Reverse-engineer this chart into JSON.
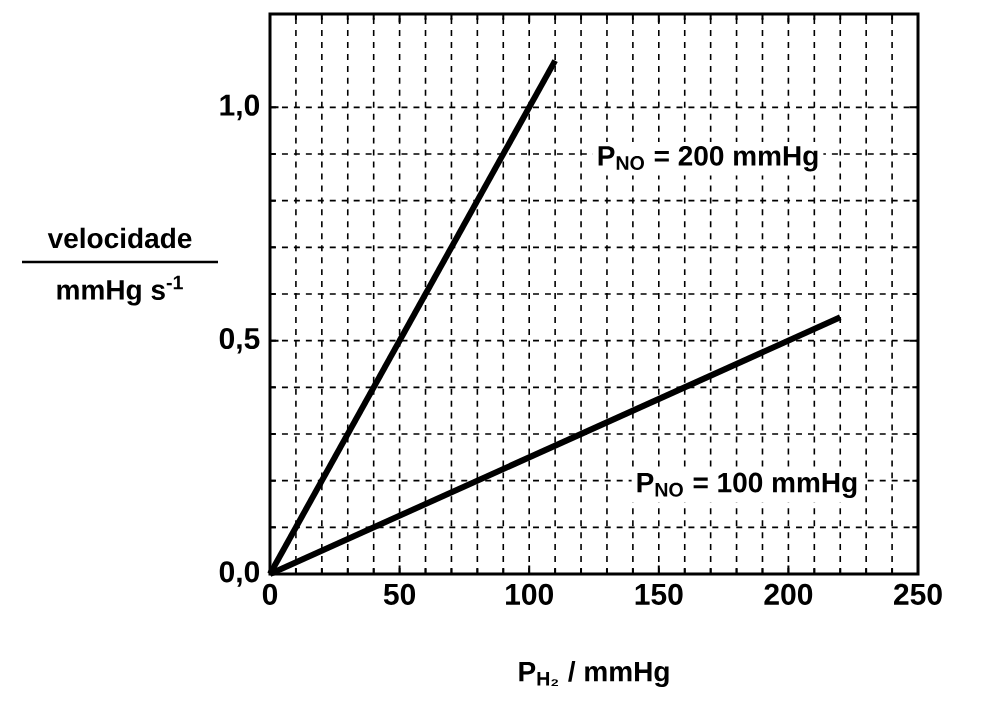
{
  "chart_data": {
    "type": "line",
    "xlabel": "P$_{H₂}$ / mmHg",
    "ylabel": [
      "velocidade",
      "mmHg s$^{-1}$"
    ],
    "series": [
      {
        "name": "P$_{NO}$ = 200 mmHg",
        "color": "#000000",
        "x": [
          0,
          110
        ],
        "values": [
          0,
          1.1
        ]
      },
      {
        "name": "P$_{NO}$ = 100 mmHg",
        "color": "#000000",
        "x": [
          0,
          220
        ],
        "values": [
          0,
          0.55
        ]
      }
    ],
    "xlim": [
      0,
      250
    ],
    "ylim": [
      0,
      1.2
    ],
    "xticks": [
      0,
      50,
      100,
      150,
      200,
      250
    ],
    "yticks": [
      {
        "value": 0,
        "label": "0,0"
      },
      {
        "value": 0.5,
        "label": "0,5"
      },
      {
        "value": 1.0,
        "label": "1,0"
      }
    ],
    "grid": true
  }
}
